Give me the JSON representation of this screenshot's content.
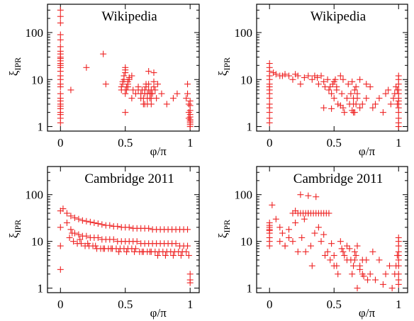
{
  "chart_data": [
    {
      "type": "scatter",
      "title": "Wikipedia",
      "xlabel": "φ/π",
      "ylabel": "ξ",
      "ylabel_sub": "IPR",
      "xlim": [
        -0.1,
        1.07
      ],
      "ylim": [
        0.8,
        400
      ],
      "yscale": "log",
      "xticks": [
        0,
        0.5,
        1
      ],
      "xtick_labels": [
        "0",
        "0.5",
        "1"
      ],
      "yticks": [
        1,
        10,
        100
      ],
      "ytick_labels": [
        "1",
        "10",
        "100"
      ],
      "grid": false,
      "marker": "+",
      "series": [
        {
          "color": "#ee2222",
          "x": [
            0,
            0,
            0,
            0,
            0,
            0,
            0,
            0,
            0,
            0,
            0,
            0,
            0,
            0,
            0,
            0,
            0,
            0,
            0,
            0,
            0,
            0,
            0,
            0,
            0,
            0,
            0,
            0,
            0,
            0.08,
            0.2,
            0.33,
            0.35,
            0.47,
            0.47,
            0.48,
            0.48,
            0.49,
            0.49,
            0.5,
            0.5,
            0.5,
            0.5,
            0.51,
            0.51,
            0.52,
            0.52,
            0.53,
            0.53,
            0.5,
            0.5,
            0.52,
            0.55,
            0.55,
            0.56,
            0.58,
            0.6,
            0.6,
            0.62,
            0.62,
            0.63,
            0.64,
            0.64,
            0.65,
            0.65,
            0.66,
            0.66,
            0.67,
            0.67,
            0.67,
            0.68,
            0.68,
            0.69,
            0.69,
            0.7,
            0.7,
            0.7,
            0.71,
            0.72,
            0.72,
            0.73,
            0.74,
            0.75,
            0.68,
            0.65,
            0.7,
            0.72,
            0.78,
            0.82,
            0.87,
            0.9,
            0.97,
            0.98,
            0.98,
            0.99,
            0.99,
            0.99,
            1,
            1,
            1,
            1,
            1,
            1,
            1,
            1,
            1,
            1
          ],
          "y": [
            300,
            220,
            160,
            90,
            70,
            50,
            40,
            35,
            30,
            28,
            25,
            22,
            20,
            18,
            15,
            12,
            10,
            8,
            7,
            5,
            4,
            3.5,
            3,
            2.7,
            2.4,
            2,
            1.8,
            1.5,
            1.2,
            6,
            18,
            35,
            8,
            6,
            7,
            8,
            9,
            10,
            12,
            14,
            16,
            18,
            5,
            6,
            7,
            8,
            9,
            10,
            11,
            2,
            6,
            7,
            4,
            12,
            6,
            5,
            6,
            7,
            4,
            5,
            6,
            3,
            4,
            5,
            6,
            7,
            8,
            3,
            4,
            5,
            6,
            8,
            4,
            5,
            3,
            4,
            6,
            5,
            7,
            14,
            6,
            4,
            8,
            15,
            3,
            5,
            9,
            5,
            3,
            4,
            5,
            4,
            8,
            5,
            1.5,
            2,
            3,
            3.5,
            2.8,
            2.2,
            1.8,
            1.6,
            1.4,
            1.3,
            1.2,
            1.1,
            1
          ]
        }
      ]
    },
    {
      "type": "scatter",
      "title": "Wikipedia",
      "xlabel": "φ/π",
      "ylabel": "ξ",
      "ylabel_sub": "IPR",
      "xlim": [
        -0.1,
        1.07
      ],
      "ylim": [
        0.8,
        400
      ],
      "yscale": "log",
      "xticks": [
        0,
        0.5,
        1
      ],
      "xtick_labels": [
        "0",
        "0.5",
        "1"
      ],
      "yticks": [
        1,
        10,
        100
      ],
      "ytick_labels": [
        "1",
        "10",
        "100"
      ],
      "grid": false,
      "marker": "+",
      "series": [
        {
          "color": "#ee2222",
          "x": [
            0,
            0,
            0,
            0,
            0,
            0,
            0,
            0,
            0,
            0,
            0,
            0,
            0,
            0,
            0,
            0.03,
            0.05,
            0.08,
            0.1,
            0.12,
            0.15,
            0.18,
            0.2,
            0.22,
            0.24,
            0.27,
            0.3,
            0.33,
            0.35,
            0.37,
            0.38,
            0.4,
            0.42,
            0.43,
            0.45,
            0.46,
            0.47,
            0.48,
            0.49,
            0.5,
            0.5,
            0.51,
            0.52,
            0.52,
            0.53,
            0.55,
            0.56,
            0.57,
            0.58,
            0.6,
            0.61,
            0.62,
            0.63,
            0.64,
            0.65,
            0.65,
            0.65,
            0.66,
            0.66,
            0.67,
            0.67,
            0.68,
            0.68,
            0.7,
            0.72,
            0.75,
            0.78,
            0.8,
            0.82,
            0.85,
            0.88,
            0.9,
            0.92,
            0.94,
            0.96,
            0.97,
            0.98,
            0.99,
            0.99,
            1,
            1,
            1,
            1,
            1,
            1,
            1,
            1,
            1,
            1,
            1,
            1,
            1,
            0.64,
            0.75,
            0.55,
            0.48,
            0.42,
            0.57,
            0.7
          ],
          "y": [
            22,
            18,
            15,
            12,
            10,
            8,
            7,
            6,
            5,
            4,
            3,
            2.5,
            2,
            1.5,
            1.2,
            14,
            13,
            12,
            12,
            13,
            12,
            10,
            13,
            12,
            8,
            11,
            12,
            10,
            12,
            11,
            8,
            12,
            9,
            7,
            10,
            6,
            7,
            5,
            8,
            9,
            4,
            10,
            6,
            7,
            3,
            12,
            5,
            10,
            2,
            4,
            8,
            3,
            5,
            9,
            2,
            3,
            4,
            6,
            2,
            7,
            3,
            4,
            5,
            10,
            3,
            4,
            7,
            2.5,
            3,
            4,
            2,
            5,
            6,
            3,
            4,
            5,
            7,
            6,
            3,
            12,
            10,
            8,
            6,
            5,
            4,
            3.5,
            3,
            2.5,
            2,
            1.5,
            1.2,
            1,
            2.2,
            8,
            2.8,
            2.4,
            2.5,
            2.5,
            2.5
          ]
        }
      ]
    },
    {
      "type": "scatter",
      "title": "Cambridge 2011",
      "xlabel": "φ/π",
      "ylabel": "ξ",
      "ylabel_sub": "IPR",
      "xlim": [
        -0.1,
        1.07
      ],
      "ylim": [
        0.8,
        400
      ],
      "yscale": "log",
      "xticks": [
        0,
        0.5,
        1
      ],
      "xtick_labels": [
        "0",
        "0.5",
        "1"
      ],
      "yticks": [
        1,
        10,
        100
      ],
      "ytick_labels": [
        "1",
        "10",
        "100"
      ],
      "grid": false,
      "marker": "+",
      "series": [
        {
          "color": "#ee2222",
          "x": [
            0,
            0,
            0,
            0,
            0.02,
            0.05,
            0.08,
            0.11,
            0.14,
            0.17,
            0.2,
            0.23,
            0.26,
            0.29,
            0.32,
            0.35,
            0.38,
            0.41,
            0.44,
            0.47,
            0.5,
            0.53,
            0.56,
            0.59,
            0.62,
            0.65,
            0.68,
            0.71,
            0.74,
            0.77,
            0.8,
            0.83,
            0.86,
            0.89,
            0.92,
            0.95,
            0.98,
            0.05,
            0.08,
            0.11,
            0.14,
            0.17,
            0.2,
            0.23,
            0.26,
            0.29,
            0.32,
            0.35,
            0.38,
            0.41,
            0.44,
            0.47,
            0.5,
            0.53,
            0.56,
            0.59,
            0.62,
            0.65,
            0.68,
            0.71,
            0.74,
            0.77,
            0.8,
            0.83,
            0.86,
            0.89,
            0.92,
            0.95,
            0.98,
            0.07,
            0.1,
            0.13,
            0.16,
            0.19,
            0.22,
            0.25,
            0.28,
            0.31,
            0.34,
            0.37,
            0.4,
            0.43,
            0.46,
            0.49,
            0.52,
            0.55,
            0.58,
            0.61,
            0.64,
            0.67,
            0.7,
            0.73,
            0.76,
            0.79,
            0.82,
            0.85,
            0.88,
            0.91,
            0.94,
            0.97,
            0.09,
            0.15,
            0.21,
            0.27,
            0.33,
            0.39,
            0.45,
            0.51,
            0.57,
            0.63,
            0.69,
            0.75,
            0.81,
            0.87,
            0.93,
            0.99,
            1,
            1,
            1
          ],
          "y": [
            45,
            20,
            8,
            2.5,
            50,
            40,
            35,
            32,
            30,
            28,
            27,
            26,
            25,
            24,
            23,
            22,
            22,
            21,
            21,
            20,
            20,
            20,
            19,
            19,
            19,
            19,
            19,
            18,
            18,
            18,
            18,
            18,
            18,
            18,
            18,
            18,
            18,
            25,
            18,
            15,
            14,
            13,
            13,
            12,
            12,
            12,
            11,
            11,
            11,
            11,
            10,
            10,
            10,
            10,
            10,
            10,
            9,
            9,
            9,
            9,
            9,
            9,
            9,
            9,
            9,
            9,
            8,
            8,
            8,
            12,
            10,
            9,
            9,
            8,
            8,
            8,
            7,
            7,
            7,
            7,
            7,
            7,
            7,
            7,
            7,
            7,
            7,
            6,
            6,
            6,
            6,
            6,
            6,
            6,
            6,
            6,
            6,
            6,
            6,
            6,
            15,
            11,
            9,
            8,
            7,
            7,
            6,
            6,
            6,
            6,
            6,
            5,
            5,
            5,
            5,
            5,
            2,
            1.5,
            1.3
          ]
        }
      ]
    },
    {
      "type": "scatter",
      "title": "Cambridge 2011",
      "xlabel": "φ/π",
      "ylabel": "ξ",
      "ylabel_sub": "IPR",
      "xlim": [
        -0.1,
        1.07
      ],
      "ylim": [
        0.8,
        400
      ],
      "yscale": "log",
      "xticks": [
        0,
        0.5,
        1
      ],
      "xtick_labels": [
        "0",
        "0.5",
        "1"
      ],
      "yticks": [
        1,
        10,
        100
      ],
      "ytick_labels": [
        "1",
        "10",
        "100"
      ],
      "grid": false,
      "marker": "+",
      "series": [
        {
          "color": "#ee2222",
          "x": [
            0,
            0,
            0,
            0,
            0,
            0,
            0,
            0,
            0,
            0.02,
            0.05,
            0.08,
            0.1,
            0.12,
            0.15,
            0.18,
            0.2,
            0.22,
            0.25,
            0.27,
            0.3,
            0.32,
            0.35,
            0.38,
            0.4,
            0.42,
            0.45,
            0.47,
            0.48,
            0.5,
            0.52,
            0.55,
            0.57,
            0.6,
            0.62,
            0.64,
            0.65,
            0.66,
            0.67,
            0.68,
            0.7,
            0.72,
            0.75,
            0.78,
            0.8,
            0.82,
            0.85,
            0.88,
            0.9,
            0.93,
            0.95,
            0.97,
            0.98,
            0.99,
            1,
            1,
            1,
            1,
            1,
            1,
            1,
            1,
            1,
            1,
            0.18,
            0.2,
            0.22,
            0.24,
            0.26,
            0.28,
            0.3,
            0.32,
            0.34,
            0.36,
            0.38,
            0.4,
            0.42,
            0.44,
            0.46,
            0.24,
            0.3,
            0.36,
            0.12,
            0.15,
            0.08,
            0.28,
            0.33,
            0.43,
            0.5,
            0.58,
            0.6,
            0.63,
            0.66,
            0.7,
            0.73,
            0.76,
            0.53,
            0.56,
            0.68,
            0.72
          ],
          "y": [
            25,
            22,
            20,
            18,
            17,
            15,
            12,
            10,
            8,
            60,
            30,
            20,
            15,
            8,
            18,
            10,
            25,
            6,
            12,
            30,
            40,
            8,
            15,
            20,
            10,
            14,
            6,
            4,
            9,
            5,
            3,
            10,
            6,
            4,
            7,
            2,
            3,
            4,
            5,
            8,
            3,
            2,
            4,
            2,
            6,
            1.5,
            4,
            1.2,
            2,
            3,
            1,
            2,
            3,
            5,
            12,
            10,
            8,
            6,
            5,
            4,
            3,
            2,
            1.5,
            1.2,
            40,
            45,
            40,
            40,
            40,
            40,
            40,
            40,
            40,
            40,
            40,
            40,
            40,
            40,
            40,
            100,
            95,
            90,
            8,
            12,
            10,
            6,
            3,
            5,
            3,
            5,
            8,
            4,
            6,
            2.5,
            1.8,
            1.5,
            2,
            7,
            1,
            4
          ]
        }
      ]
    }
  ]
}
